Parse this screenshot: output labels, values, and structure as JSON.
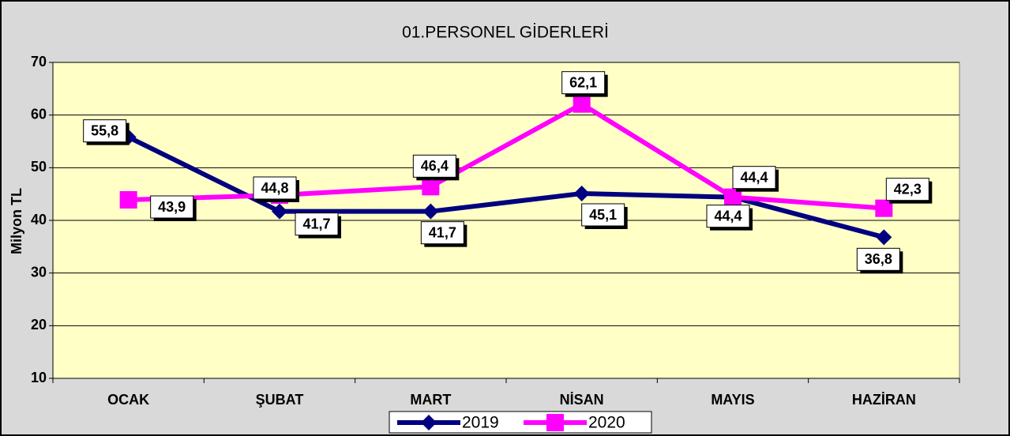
{
  "chart_data": {
    "type": "line",
    "title": "01.PERSONEL GİDERLERİ",
    "y_label": "Milyon TL",
    "categories": [
      "OCAK",
      "ŞUBAT",
      "MART",
      "NİSAN",
      "MAYIS",
      "HAZİRAN"
    ],
    "series": [
      {
        "name": "2019",
        "color": "#000080",
        "marker": "diamond",
        "values": [
          55.8,
          41.7,
          41.7,
          45.1,
          44.4,
          36.8
        ],
        "value_labels": [
          "55,8",
          "41,7",
          "41,7",
          "45,1",
          "44,4",
          "36,8"
        ]
      },
      {
        "name": "2020",
        "color": "#ff00ff",
        "marker": "square",
        "values": [
          43.9,
          44.8,
          46.4,
          62.1,
          44.4,
          42.3
        ],
        "value_labels": [
          "43,9",
          "44,8",
          "46,4",
          "62,1",
          "44,4",
          "42,3"
        ]
      }
    ],
    "ylim": [
      10,
      70
    ],
    "yticks": [
      10,
      20,
      30,
      40,
      50,
      60,
      70
    ],
    "grid": true
  }
}
